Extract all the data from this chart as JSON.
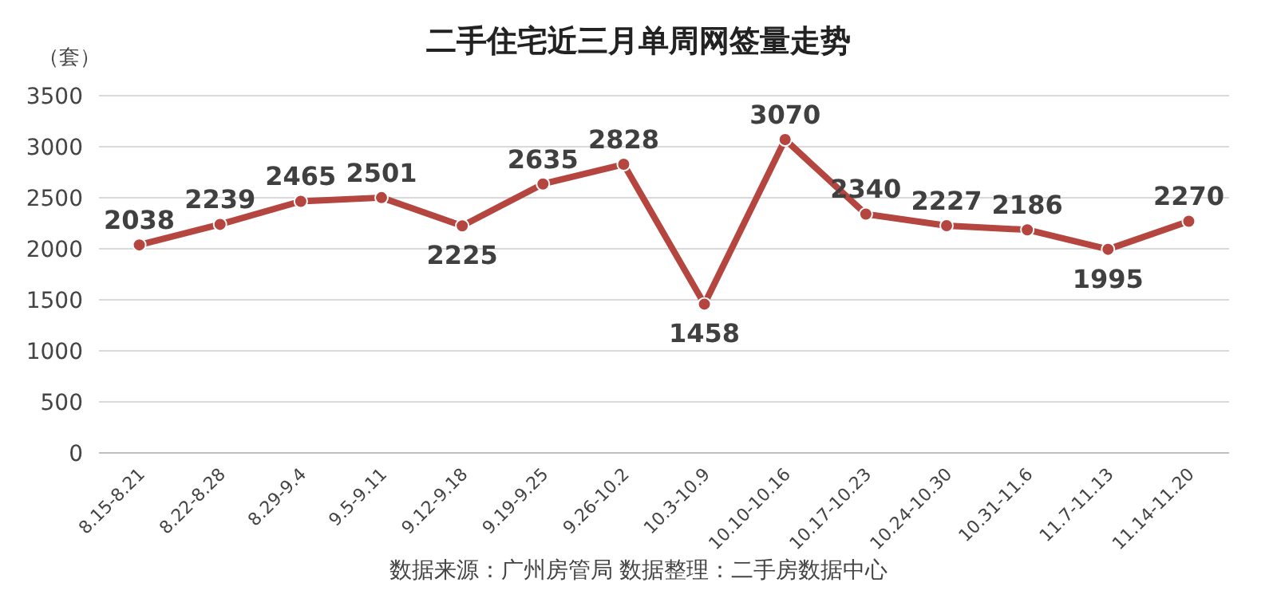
{
  "chart_data": {
    "type": "line",
    "title": "二手住宅近三月单周网签量走势",
    "ylabel": "（套）",
    "categories": [
      "8.15-8.21",
      "8.22-8.28",
      "8.29-9.4",
      "9.5-9.11",
      "9.12-9.18",
      "9.19-9.25",
      "9.26-10.2",
      "10.3-10.9",
      "10.10-10.16",
      "10.17-10.23",
      "10.24-10.30",
      "10.31-11.6",
      "11.7-11.13",
      "11.14-11.20"
    ],
    "series": [
      {
        "color": "#b5453f",
        "values": [
          2038,
          2239,
          2465,
          2501,
          2225,
          2635,
          2828,
          1458,
          3070,
          2340,
          2227,
          2186,
          1995,
          2270
        ]
      }
    ],
    "ylim": [
      0,
      3500
    ],
    "yticks": [
      0,
      500,
      1000,
      1500,
      2000,
      2500,
      3000,
      3500
    ],
    "grid": "y",
    "marker": "circle",
    "data_labels": true,
    "annotations": [
      "数据来源：广州房管局  数据整理：二手房数据中心"
    ]
  }
}
